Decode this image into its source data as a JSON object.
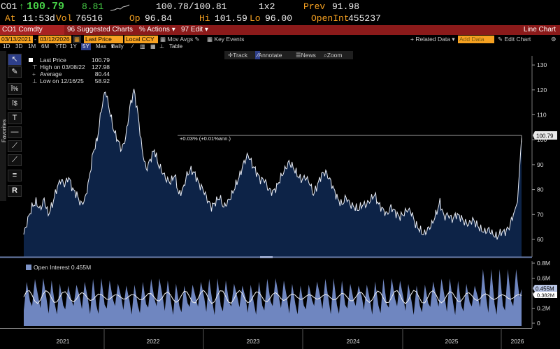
{
  "quote": {
    "ticker": "CO1",
    "arrow": "↑",
    "last": "100.79",
    "change": "8.81",
    "bid_ask": "100.78/100.81",
    "size": "1x2",
    "prev_label": "Prev",
    "prev": "91.98",
    "at_label": "At",
    "time": "11:53d",
    "vol_label": "Vol",
    "vol": "76516",
    "open_label": "Op",
    "open": "96.84",
    "high_label": "Hi",
    "high": "101.59",
    "low_label": "Lo",
    "low": "96.00",
    "oi_label": "OpenInt",
    "oi": "455237"
  },
  "titlebar": {
    "security": "CO1 Comdty",
    "menu_suggested": "Suggested Charts",
    "menu_actions": "Actions",
    "menu_edit": "Edit",
    "chart_name": "Line Chart"
  },
  "toolbar": {
    "start_date": "03/13/2021",
    "end_date": "03/12/2026",
    "field": "Last Price",
    "currency": "Local CCY",
    "mov_avgs": "Mov Avgs",
    "key_events": "Key Events",
    "related_data": "Related Data",
    "add_data": "Add Data",
    "edit_chart": "Edit Chart",
    "ranges": [
      "1D",
      "3D",
      "1M",
      "6M",
      "YTD",
      "1Y",
      "5Y",
      "Max"
    ],
    "selected_range": "5Y",
    "frequency": "Daily",
    "table": "Table"
  },
  "chart_tools": {
    "track": "Track",
    "annotate": "Annotate",
    "news": "News",
    "zoom": "Zoom"
  },
  "palette": {
    "favorites": "Favorites",
    "tools": [
      "pointer-icon",
      "draw-line-icon",
      "percent-tool-icon",
      "dollar-tool-icon",
      "text-tool-icon",
      "horizontal-line-icon",
      "trend-line-icon",
      "extended-line-icon",
      "channel-icon",
      "fibonacci-icon"
    ]
  },
  "legend": {
    "last_price_label": "Last Price",
    "last_price_value": "100.79",
    "high_label": "High on 03/08/22",
    "high_value": "127.98",
    "average_label": "Average",
    "average_value": "80.44",
    "low_label": "Low on 12/16/25",
    "low_value": "58.92"
  },
  "annotation": "+0.03% (+0.01%ann.)",
  "oi_legend": "Open Interest 0.455M",
  "colors": {
    "price_line": "#e8ecf5",
    "price_fill": "#0d2347",
    "oi_fill": "#6f86c0",
    "amber": "#f6a121",
    "title_red": "#8b1a1a"
  },
  "chart_data": [
    {
      "type": "area",
      "title": "",
      "series": [
        {
          "name": "Last Price",
          "values": [
            62,
            68,
            73,
            75,
            72,
            76,
            70,
            74,
            80,
            84,
            82,
            85,
            80,
            78,
            74,
            76,
            84,
            95,
            100,
            112,
            120,
            112,
            104,
            100,
            96,
            101,
            113,
            120,
            110,
            96,
            88,
            92,
            96,
            90,
            87,
            84,
            83,
            86,
            78,
            80,
            86,
            88,
            86,
            82,
            80,
            76,
            73,
            75,
            77,
            73,
            75,
            78,
            82,
            86,
            91,
            94,
            90,
            87,
            84,
            84,
            80,
            79,
            81,
            85,
            88,
            91,
            89,
            86,
            84,
            85,
            83,
            78,
            82,
            86,
            87,
            84,
            80,
            76,
            74,
            77,
            74,
            73,
            72,
            74,
            74,
            76,
            78,
            74,
            72,
            70,
            73,
            71,
            69,
            70,
            72,
            71,
            66,
            64,
            62,
            64,
            66,
            70,
            75,
            69,
            70,
            68,
            70,
            69,
            67,
            66,
            68,
            66,
            64,
            63,
            64,
            62,
            61,
            63,
            63,
            65,
            70,
            75,
            100.79
          ]
        }
      ],
      "x_start": "03/13/2021",
      "x_end": "03/12/2026",
      "x_tick_labels": [
        "2021",
        "2022",
        "2023",
        "2024",
        "2025",
        "2026"
      ],
      "y_ticks": [
        60,
        70,
        80,
        90,
        100,
        110,
        120,
        130
      ],
      "ylim": [
        55,
        133
      ],
      "last": 100.79,
      "high": 127.98,
      "average": 80.44,
      "low": 58.92
    },
    {
      "type": "area",
      "title": "",
      "series": [
        {
          "name": "Open Interest",
          "unit": "M",
          "cycle_count": 60,
          "base_low": 0.05,
          "base_high": 0.55,
          "recent_high": 0.72
        }
      ],
      "y_tick_labels": [
        "0",
        "0.2M",
        "0.4M",
        "0.6M",
        "0.8M"
      ],
      "y_ticks": [
        0,
        0.2,
        0.4,
        0.6,
        0.8
      ],
      "ylim": [
        -0.05,
        0.86
      ],
      "last_label": "0.455M",
      "mid_label": "0.382M"
    }
  ]
}
